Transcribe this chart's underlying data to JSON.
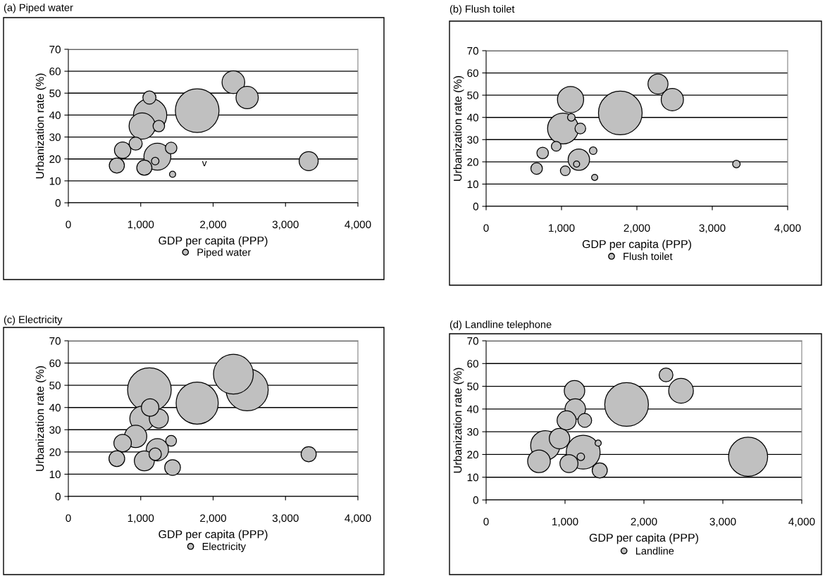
{
  "chart_data": [
    {
      "type": "bubble",
      "title": "(a) Piped water",
      "xlabel": "GDP per capita (PPP)",
      "ylabel": "Urbanization rate (%)",
      "x": [
        670,
        750,
        930,
        1020,
        1050,
        1120,
        1130,
        1200,
        1230,
        1250,
        1420,
        1440,
        1780,
        2280,
        2470,
        3320
      ],
      "series": [
        {
          "name": "Piped water",
          "color": "#c0c0c0",
          "values": [
            17,
            24,
            27,
            35,
            16,
            48,
            40,
            19,
            21,
            35,
            25,
            13,
            42,
            55,
            48,
            19
          ],
          "sizes": [
            0.12,
            0.14,
            0.09,
            0.36,
            0.12,
            0.09,
            0.58,
            0.03,
            0.38,
            0.07,
            0.07,
            0.02,
            1,
            0.27,
            0.26,
            0.19
          ]
        }
      ],
      "xlim": [
        0,
        4000
      ],
      "ylim": [
        0,
        70
      ],
      "xticks": [
        0,
        {
          "value": 1000,
          "label": "1,000"
        },
        {
          "value": 2000,
          "label": "2,000"
        },
        {
          "value": 3000,
          "label": "3,000"
        },
        {
          "value": 4000,
          "label": "4,000"
        }
      ],
      "yticks": [
        0,
        10,
        20,
        30,
        40,
        50,
        60,
        70
      ],
      "grid": "y",
      "legend": "bottom",
      "annotations": [
        "v"
      ]
    },
    {
      "type": "bubble",
      "title": "(b) Flush toilet",
      "xlabel": "GDP per capita (PPP)",
      "ylabel": "Urbanization rate (%)",
      "x": [
        670,
        750,
        930,
        1020,
        1050,
        1120,
        1130,
        1200,
        1230,
        1250,
        1420,
        1440,
        1780,
        2280,
        2470,
        3320
      ],
      "series": [
        {
          "name": "Flush toilet",
          "color": "#c0c0c0",
          "values": [
            17,
            24,
            27,
            35,
            16,
            48,
            40,
            19,
            21,
            35,
            25,
            13,
            42,
            55,
            48,
            19
          ],
          "sizes": [
            0.07,
            0.07,
            0.05,
            0.5,
            0.05,
            0.36,
            0.03,
            0.02,
            0.24,
            0.06,
            0.03,
            0.02,
            1,
            0.21,
            0.26,
            0.03
          ]
        }
      ],
      "xlim": [
        0,
        4000
      ],
      "ylim": [
        0,
        70
      ],
      "xticks": [
        0,
        {
          "value": 1000,
          "label": "1,000"
        },
        {
          "value": 2000,
          "label": "2,000"
        },
        {
          "value": 3000,
          "label": "3,000"
        },
        {
          "value": 4000,
          "label": "4,000"
        }
      ],
      "yticks": [
        0,
        10,
        20,
        30,
        40,
        50,
        60,
        70
      ],
      "grid": "y",
      "legend": "bottom"
    },
    {
      "type": "bubble",
      "title": "(c) Electricity",
      "xlabel": "GDP per capita (PPP)",
      "ylabel": "Urbanization rate (%)",
      "x": [
        670,
        750,
        930,
        1020,
        1050,
        1120,
        1130,
        1200,
        1230,
        1250,
        1420,
        1440,
        1780,
        2280,
        2470,
        3320
      ],
      "series": [
        {
          "name": "Electricity",
          "color": "#c0c0c0",
          "values": [
            17,
            24,
            27,
            35,
            16,
            48,
            40,
            19,
            21,
            35,
            25,
            13,
            42,
            55,
            48,
            19
          ],
          "sizes": [
            0.13,
            0.16,
            0.26,
            0.32,
            0.21,
            1,
            0.16,
            0.08,
            0.26,
            0.19,
            0.06,
            0.13,
            0.93,
            0.83,
            0.93,
            0.12
          ]
        }
      ],
      "xlim": [
        0,
        4000
      ],
      "ylim": [
        0,
        70
      ],
      "xticks": [
        0,
        {
          "value": 1000,
          "label": "1,000"
        },
        {
          "value": 2000,
          "label": "2,000"
        },
        {
          "value": 3000,
          "label": "3,000"
        },
        {
          "value": 4000,
          "label": "4,000"
        }
      ],
      "yticks": [
        0,
        10,
        20,
        30,
        40,
        50,
        60,
        70
      ],
      "grid": "y",
      "legend": "bottom"
    },
    {
      "type": "bubble",
      "title": "(d) Landline telephone",
      "xlabel": "GDP per capita (PPP)",
      "ylabel": "Urbanization rate (%)",
      "x": [
        670,
        750,
        930,
        1020,
        1050,
        1120,
        1130,
        1200,
        1230,
        1250,
        1420,
        1440,
        1780,
        2280,
        2470,
        3320
      ],
      "series": [
        {
          "name": "Landline",
          "color": "#c0c0c0",
          "values": [
            17,
            24,
            27,
            35,
            16,
            48,
            40,
            19,
            21,
            35,
            25,
            13,
            42,
            55,
            48,
            19
          ],
          "sizes": [
            0.27,
            0.45,
            0.22,
            0.19,
            0.17,
            0.22,
            0.22,
            0.03,
            0.6,
            0.1,
            0.02,
            0.12,
            1,
            0.1,
            0.32,
            0.8
          ]
        }
      ],
      "xlim": [
        0,
        4000
      ],
      "ylim": [
        0,
        70
      ],
      "xticks": [
        0,
        {
          "value": 1000,
          "label": "1,000"
        },
        {
          "value": 2000,
          "label": "2,000"
        },
        {
          "value": 3000,
          "label": "3,000"
        },
        {
          "value": 4000,
          "label": "4,000"
        }
      ],
      "yticks": [
        0,
        10,
        20,
        30,
        40,
        50,
        60,
        70
      ],
      "grid": "y",
      "legend": "bottom"
    }
  ]
}
